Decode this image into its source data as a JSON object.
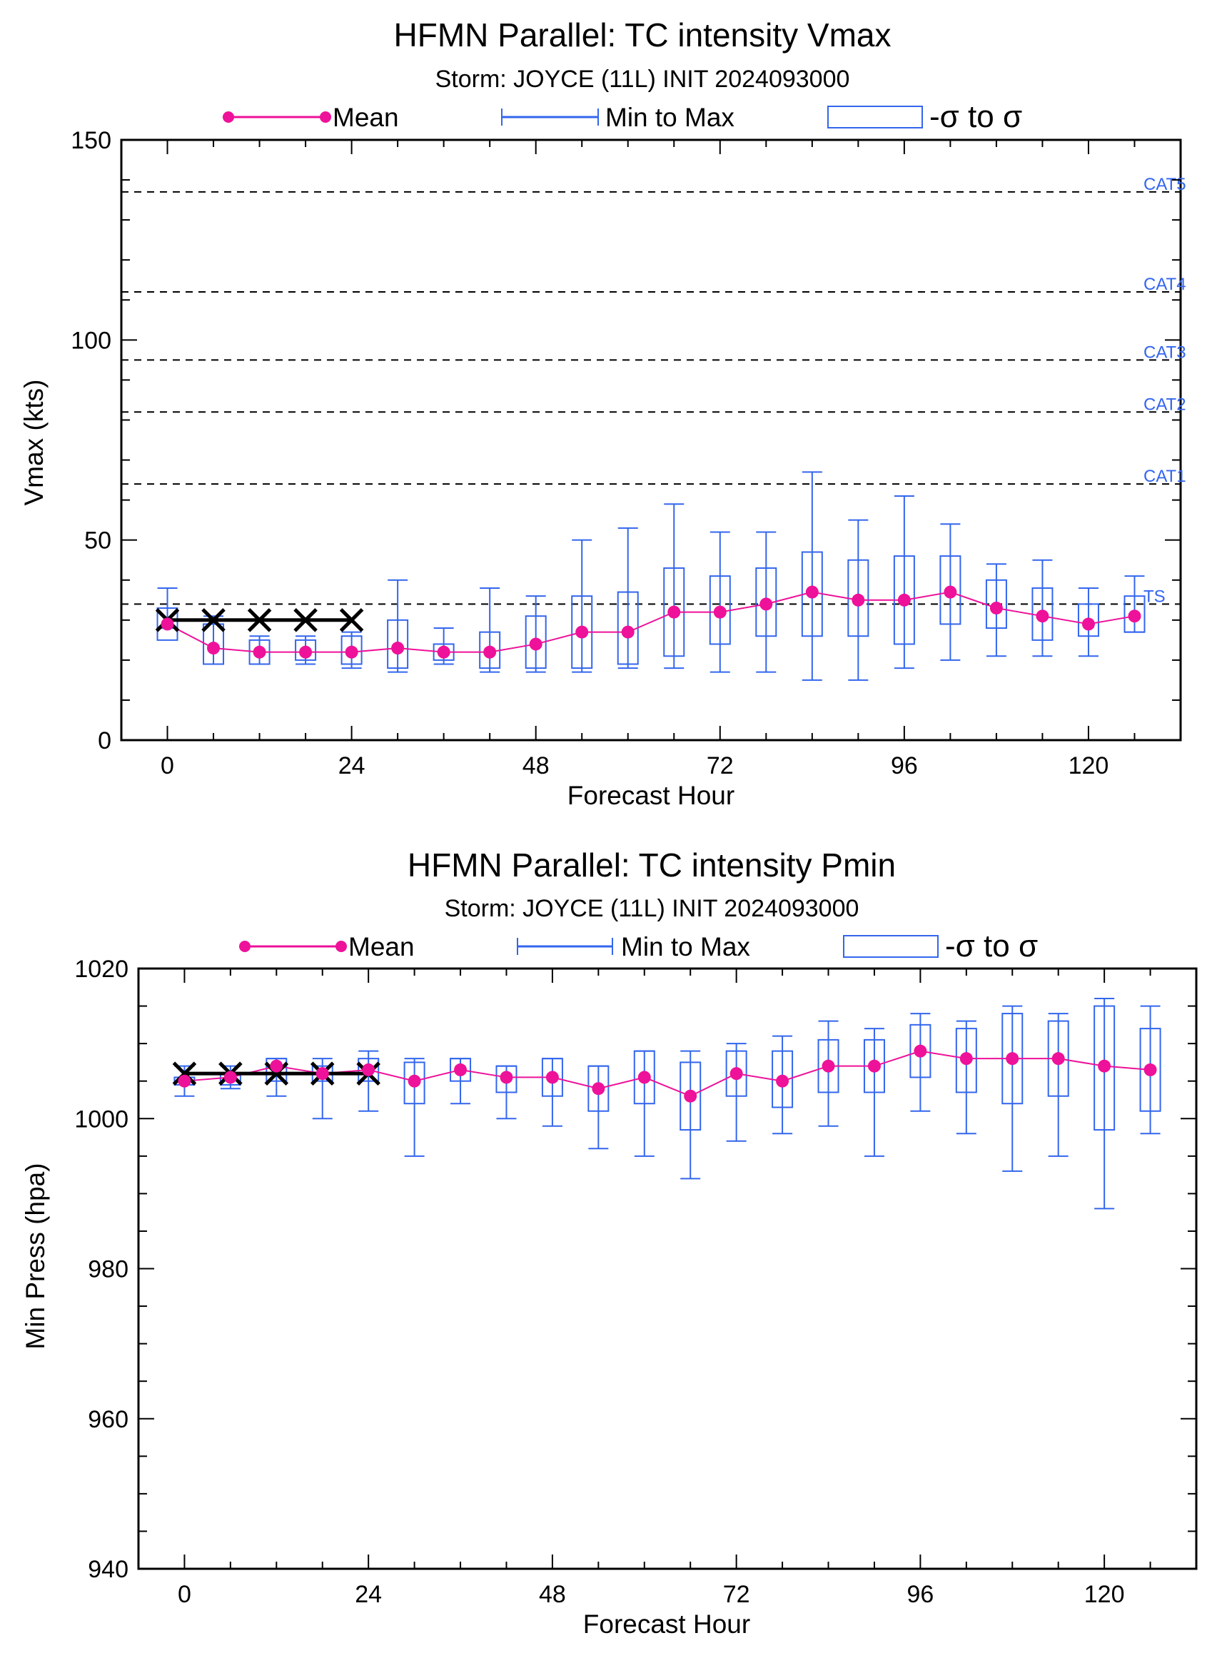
{
  "colors": {
    "mean": "#ee1199",
    "minmax": "#3366ee",
    "box": "#3366ee",
    "best_track": "#000000",
    "threshold": "#000000",
    "threshold_label": "#3366ee"
  },
  "legend": {
    "mean": "Mean",
    "minmax": "Min to Max",
    "sigma": "-σ to σ"
  },
  "chart_data": [
    {
      "type": "box",
      "title": "HFMN Parallel: TC intensity Vmax",
      "subtitle": "Storm: JOYCE (11L) INIT 2024093000",
      "xlabel": "Forecast Hour",
      "ylabel": "Vmax (kts)",
      "xlim": [
        -6,
        132
      ],
      "ylim": [
        0,
        150
      ],
      "xticks": [
        0,
        24,
        48,
        72,
        96,
        120
      ],
      "yticks": [
        0,
        50,
        100,
        150
      ],
      "y_minor_step": 10,
      "thresholds": [
        {
          "label": "TS",
          "value": 34
        },
        {
          "label": "CAT1",
          "value": 64
        },
        {
          "label": "CAT2",
          "value": 82
        },
        {
          "label": "CAT3",
          "value": 95
        },
        {
          "label": "CAT4",
          "value": 112
        },
        {
          "label": "CAT5",
          "value": 137
        }
      ],
      "best_track": {
        "x": [
          0,
          6,
          12,
          18,
          24
        ],
        "y": [
          30,
          30,
          30,
          30,
          30
        ]
      },
      "series": {
        "x": [
          0,
          6,
          12,
          18,
          24,
          30,
          36,
          42,
          48,
          54,
          60,
          66,
          72,
          78,
          84,
          90,
          96,
          102,
          108,
          114,
          120,
          126
        ],
        "mean": [
          29,
          23,
          22,
          22,
          22,
          23,
          22,
          22,
          24,
          27,
          27,
          32,
          32,
          34,
          37,
          35,
          35,
          37,
          33,
          31,
          29,
          31
        ],
        "min": [
          28,
          19,
          19,
          19,
          18,
          17,
          19,
          17,
          17,
          17,
          18,
          18,
          17,
          17,
          15,
          15,
          18,
          20,
          21,
          21,
          21,
          27
        ],
        "max": [
          38,
          31,
          26,
          26,
          27,
          40,
          28,
          38,
          36,
          50,
          53,
          59,
          52,
          52,
          67,
          55,
          61,
          54,
          44,
          45,
          38,
          41
        ],
        "box_low": [
          25,
          19,
          19,
          20,
          19,
          18,
          20,
          18,
          18,
          18,
          19,
          21,
          24,
          26,
          26,
          26,
          24,
          29,
          28,
          25,
          26,
          27
        ],
        "box_high": [
          33,
          29,
          25,
          25,
          26,
          30,
          24,
          27,
          31,
          36,
          37,
          43,
          41,
          43,
          47,
          45,
          46,
          46,
          40,
          38,
          34,
          36
        ]
      }
    },
    {
      "type": "box",
      "title": "HFMN Parallel: TC intensity Pmin",
      "subtitle": "Storm: JOYCE (11L) INIT 2024093000",
      "xlabel": "Forecast Hour",
      "ylabel": "Min Press (hpa)",
      "xlim": [
        -6,
        132
      ],
      "ylim": [
        940,
        1020
      ],
      "xticks": [
        0,
        24,
        48,
        72,
        96,
        120
      ],
      "yticks": [
        940,
        960,
        980,
        1000,
        1020
      ],
      "y_minor_step": 5,
      "thresholds": [],
      "best_track": {
        "x": [
          0,
          6,
          12,
          18,
          24
        ],
        "y": [
          1006,
          1006,
          1006,
          1006,
          1006
        ]
      },
      "series": {
        "x": [
          0,
          6,
          12,
          18,
          24,
          30,
          36,
          42,
          48,
          54,
          60,
          66,
          72,
          78,
          84,
          90,
          96,
          102,
          108,
          114,
          120,
          126
        ],
        "mean": [
          1005,
          1005.5,
          1007,
          1006,
          1006.5,
          1005,
          1006.5,
          1005.5,
          1005.5,
          1004,
          1005.5,
          1003,
          1006,
          1005,
          1007,
          1007,
          1009,
          1008,
          1008,
          1008,
          1007,
          1006.5
        ],
        "min": [
          1003,
          1004,
          1003,
          1000,
          1001,
          995,
          1002,
          1000,
          999,
          996,
          995,
          992,
          997,
          998,
          999,
          995,
          1001,
          998,
          993,
          995,
          988,
          998
        ],
        "max": [
          1007,
          1007,
          1008,
          1008,
          1009,
          1008,
          1008,
          1007,
          1008,
          1007,
          1009,
          1009,
          1010,
          1011,
          1013,
          1012,
          1014,
          1013,
          1015,
          1014,
          1016,
          1015
        ],
        "box_low": [
          1004.5,
          1004.5,
          1005,
          1005,
          1005,
          1002,
          1005,
          1003.5,
          1003,
          1001,
          1002,
          998.5,
          1003,
          1001.5,
          1003.5,
          1003.5,
          1005.5,
          1003.5,
          1002,
          1003,
          998.5,
          1001
        ],
        "box_high": [
          1005.5,
          1006,
          1008,
          1007,
          1008,
          1007.5,
          1008,
          1007,
          1008,
          1007,
          1009,
          1007.5,
          1009,
          1009,
          1010.5,
          1010.5,
          1012.5,
          1012,
          1014,
          1013,
          1015,
          1012
        ]
      }
    }
  ]
}
